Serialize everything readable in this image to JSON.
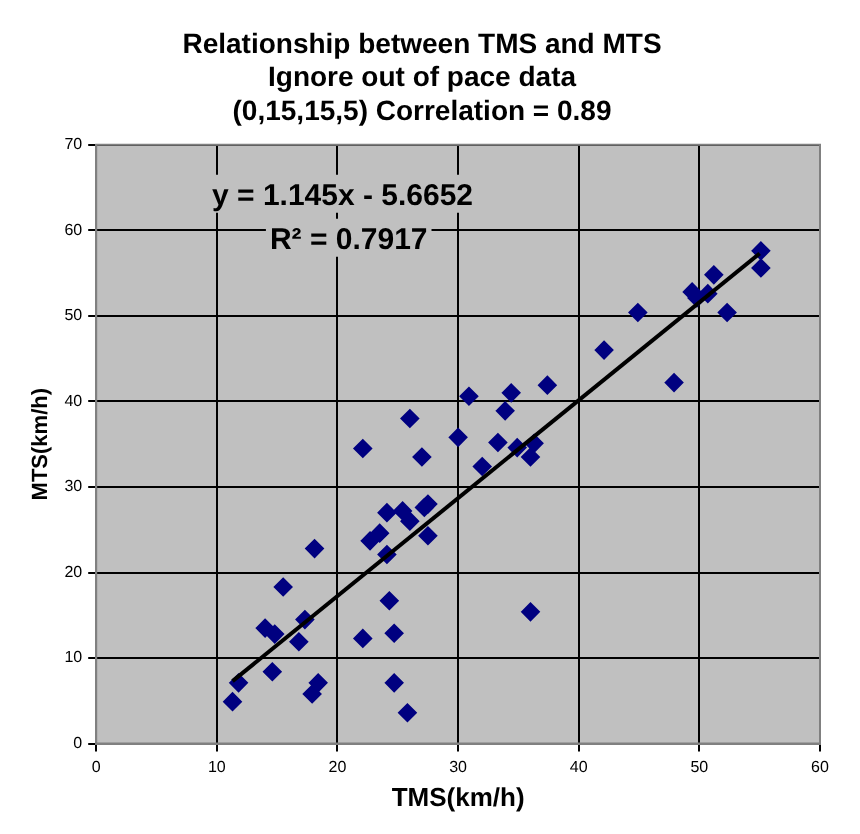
{
  "chart_data": {
    "type": "scatter",
    "title": "Relationship between TMS and MTS\nIgnore out of pace data\n(0,15,15,5) Correlation = 0.89",
    "xlabel": "TMS(km/h)",
    "ylabel": "MTS(km/h)",
    "xlim": [
      0,
      60
    ],
    "xticks": [
      0,
      10,
      20,
      30,
      40,
      50,
      60
    ],
    "ylim": [
      0,
      70
    ],
    "yticks": [
      0,
      10,
      20,
      30,
      40,
      50,
      60,
      70
    ],
    "grid": true,
    "legend": false,
    "marker": "diamond",
    "annotations": [
      "y = 1.145x - 5.6652",
      "R² = 0.7917"
    ],
    "series": [
      {
        "type": "scatter",
        "color": "#000080",
        "x": [
          11.3,
          11.8,
          14.0,
          14.8,
          14.6,
          15.5,
          16.8,
          17.3,
          17.9,
          18.4,
          18.1,
          22.1,
          22.1,
          22.7,
          23.5,
          24.1,
          24.1,
          24.3,
          24.7,
          24.7,
          25.8,
          25.4,
          26.0,
          26.0,
          27.0,
          27.2,
          27.5,
          27.5,
          30.0,
          30.9,
          32.0,
          33.3,
          33.9,
          34.4,
          34.9,
          36.0,
          36.3,
          36.0,
          37.4,
          42.1,
          44.9,
          47.9,
          49.4,
          49.8,
          50.7,
          51.2,
          52.3,
          55.1,
          55.1
        ],
        "values": [
          4.9,
          7.1,
          13.5,
          12.8,
          8.4,
          18.3,
          11.9,
          14.5,
          5.8,
          7.1,
          22.8,
          34.5,
          12.3,
          23.7,
          24.6,
          27.0,
          22.1,
          16.7,
          12.9,
          7.1,
          3.6,
          27.2,
          26.0,
          38.0,
          33.5,
          27.6,
          28.0,
          24.3,
          35.8,
          40.6,
          32.4,
          35.2,
          38.9,
          41.0,
          34.6,
          33.5,
          35.1,
          15.4,
          41.9,
          46.0,
          50.4,
          42.2,
          52.8,
          52.1,
          52.6,
          54.8,
          50.4,
          57.6,
          55.6
        ]
      },
      {
        "type": "line",
        "color": "#000000",
        "marker": "none",
        "x": [
          11.3,
          55.0
        ],
        "values": [
          7.3,
          57.3
        ]
      }
    ]
  }
}
